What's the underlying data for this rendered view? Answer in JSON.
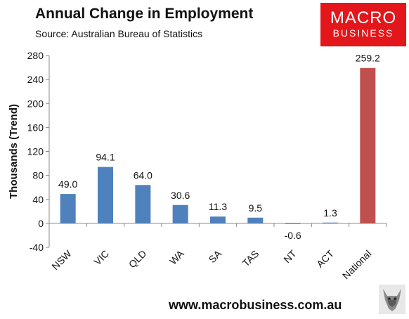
{
  "header": {
    "title": "Annual Change in Employment",
    "subtitle": "Source: Australian Bureau of Statistics"
  },
  "logo": {
    "line1": "MACRO",
    "line2": "BUSINESS"
  },
  "footer": {
    "url": "www.macrobusiness.com.au"
  },
  "colors": {
    "bar": "#4f81bd",
    "highlight": "#c0504d",
    "logo": "#e3161b"
  },
  "chart_data": {
    "type": "bar",
    "title": "Annual Change in Employment",
    "ylabel": "Thousands (Trend)",
    "xlabel": "",
    "categories": [
      "NSW",
      "VIC",
      "QLD",
      "WA",
      "SA",
      "TAS",
      "NT",
      "ACT",
      "National"
    ],
    "values": [
      49.0,
      94.1,
      64.0,
      30.6,
      11.3,
      9.5,
      -0.6,
      1.3,
      259.2
    ],
    "data_labels": [
      "49.0",
      "94.1",
      "64.0",
      "30.6",
      "11.3",
      "9.5",
      "-0.6",
      "1.3",
      "259.2"
    ],
    "highlight_category": "National",
    "ylim": [
      -40,
      280
    ],
    "yticks": [
      -40,
      0,
      40,
      80,
      120,
      160,
      200,
      240,
      280
    ],
    "grid": false,
    "legend": "none"
  }
}
